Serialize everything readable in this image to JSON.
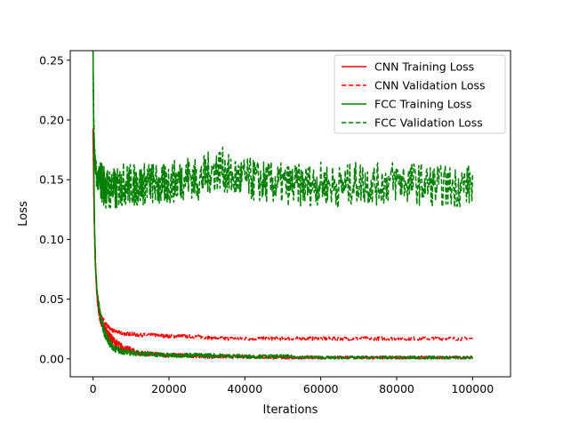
{
  "chart_data": {
    "type": "line",
    "title": "",
    "xlabel": "Iterations",
    "ylabel": "Loss",
    "xlim": [
      -6000,
      110000
    ],
    "ylim": [
      -0.015,
      0.258
    ],
    "x_ticks": [
      {
        "value": 0,
        "label": "0"
      },
      {
        "value": 20000,
        "label": "20000"
      },
      {
        "value": 40000,
        "label": "40000"
      },
      {
        "value": 60000,
        "label": "60000"
      },
      {
        "value": 80000,
        "label": "80000"
      },
      {
        "value": 100000,
        "label": "100000"
      }
    ],
    "y_ticks": [
      {
        "value": 0.0,
        "label": "0.00"
      },
      {
        "value": 0.05,
        "label": "0.05"
      },
      {
        "value": 0.1,
        "label": "0.10"
      },
      {
        "value": 0.15,
        "label": "0.15"
      },
      {
        "value": 0.2,
        "label": "0.20"
      },
      {
        "value": 0.25,
        "label": "0.25"
      }
    ],
    "grid": false,
    "legend_position": "top-right",
    "series": [
      {
        "name": "CNN Training Loss",
        "color": "#ff0000",
        "dash": "solid",
        "x": [
          0,
          300,
          600,
          1000,
          1500,
          2000,
          3000,
          4000,
          5000,
          6000,
          7000,
          8000,
          9000,
          10000,
          12000,
          15000,
          20000,
          25000,
          30000,
          40000,
          50000,
          60000,
          70000,
          80000,
          90000,
          100000
        ],
        "y": [
          0.19,
          0.12,
          0.08,
          0.055,
          0.04,
          0.032,
          0.026,
          0.02,
          0.016,
          0.013,
          0.011,
          0.009,
          0.008,
          0.007,
          0.005,
          0.004,
          0.003,
          0.003,
          0.002,
          0.002,
          0.001,
          0.001,
          0.001,
          0.001,
          0.001,
          0.001
        ]
      },
      {
        "name": "CNN Validation Loss",
        "color": "#ff0000",
        "dash": "dashed",
        "x": [
          0,
          300,
          600,
          1000,
          1500,
          2000,
          3000,
          4000,
          5000,
          6000,
          7000,
          8000,
          9000,
          10000,
          12000,
          15000,
          20000,
          24000,
          25000,
          30000,
          35000,
          40000,
          50000,
          60000,
          70000,
          80000,
          90000,
          100000
        ],
        "y": [
          0.19,
          0.12,
          0.08,
          0.058,
          0.045,
          0.037,
          0.031,
          0.027,
          0.024,
          0.023,
          0.022,
          0.021,
          0.021,
          0.021,
          0.02,
          0.02,
          0.019,
          0.019,
          0.019,
          0.018,
          0.017,
          0.017,
          0.017,
          0.017,
          0.017,
          0.017,
          0.017,
          0.017
        ]
      },
      {
        "name": "FCC Training Loss",
        "color": "#008000",
        "dash": "solid",
        "x": [
          0,
          200,
          400,
          700,
          1000,
          1500,
          2000,
          3000,
          4000,
          5000,
          6000,
          8000,
          10000,
          15000,
          20000,
          30000,
          40000,
          50000,
          60000,
          70000,
          80000,
          90000,
          100000
        ],
        "y": [
          0.258,
          0.17,
          0.11,
          0.075,
          0.058,
          0.045,
          0.035,
          0.022,
          0.015,
          0.011,
          0.008,
          0.006,
          0.005,
          0.004,
          0.003,
          0.003,
          0.002,
          0.002,
          0.001,
          0.001,
          0.001,
          0.001,
          0.001
        ]
      },
      {
        "name": "FCC Validation Loss",
        "color": "#008000",
        "dash": "dashed",
        "x": [
          0,
          200,
          400,
          700,
          1000,
          1500,
          2000,
          3000,
          4000,
          5000,
          6000,
          8000,
          10000,
          12000,
          15000,
          18000,
          20000,
          23000,
          25000,
          28000,
          30000,
          32000,
          34000,
          36000,
          40000,
          45000,
          50000,
          55000,
          60000,
          65000,
          70000,
          75000,
          80000,
          85000,
          90000,
          95000,
          100000
        ],
        "y": [
          0.258,
          0.2,
          0.17,
          0.158,
          0.152,
          0.149,
          0.15,
          0.145,
          0.142,
          0.143,
          0.141,
          0.147,
          0.146,
          0.145,
          0.148,
          0.144,
          0.147,
          0.15,
          0.153,
          0.149,
          0.155,
          0.157,
          0.16,
          0.152,
          0.151,
          0.148,
          0.146,
          0.145,
          0.147,
          0.144,
          0.148,
          0.146,
          0.149,
          0.147,
          0.145,
          0.144,
          0.146
        ]
      }
    ]
  }
}
